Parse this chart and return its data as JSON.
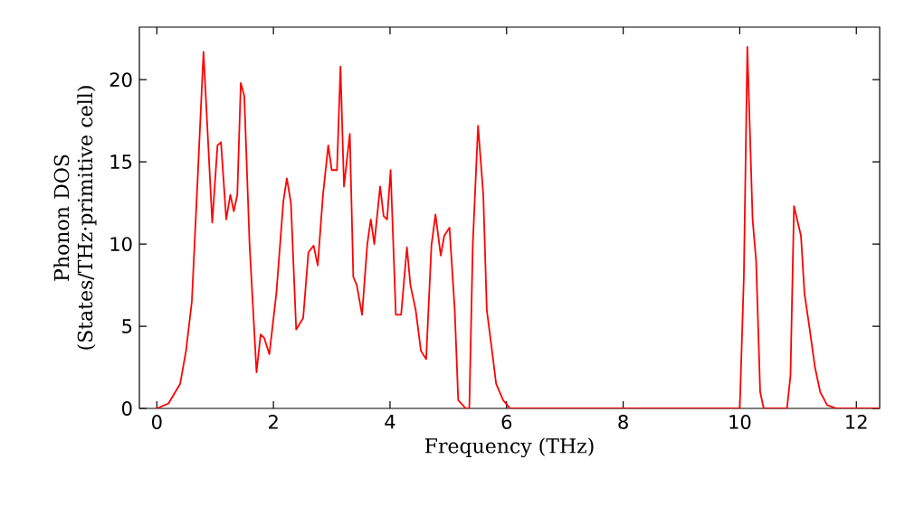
{
  "chart_data": {
    "type": "line",
    "xlabel": "Frequency (THz)",
    "ylabel": "Phonon DOS (States/THz·primitive cell)",
    "xlim": [
      -0.3,
      12.4
    ],
    "ylim": [
      0,
      23.2
    ],
    "xticks": [
      0,
      2,
      4,
      6,
      8,
      10,
      12
    ],
    "yticks": [
      0,
      5,
      10,
      15,
      20
    ],
    "grid": false,
    "series": [
      {
        "color": "#ff0000",
        "x": [
          0,
          0.2,
          0.4,
          0.5,
          0.6,
          0.7,
          0.8,
          0.95,
          1.04,
          1.1,
          1.19,
          1.26,
          1.32,
          1.38,
          1.44,
          1.5,
          1.59,
          1.71,
          1.78,
          1.84,
          1.93,
          2.05,
          2.17,
          2.23,
          2.3,
          2.39,
          2.51,
          2.6,
          2.69,
          2.76,
          2.85,
          2.94,
          3.0,
          3.09,
          3.15,
          3.21,
          3.31,
          3.37,
          3.43,
          3.52,
          3.61,
          3.67,
          3.73,
          3.83,
          3.89,
          3.95,
          4.01,
          4.1,
          4.19,
          4.29,
          4.35,
          4.44,
          4.53,
          4.62,
          4.71,
          4.78,
          4.87,
          4.93,
          5.02,
          5.11,
          5.17,
          5.3,
          5.36,
          5.42,
          5.51,
          5.6,
          5.66,
          5.75,
          5.82,
          5.94,
          6.06,
          8.0,
          10.0,
          10.07,
          10.13,
          10.22,
          10.28,
          10.35,
          10.41,
          10.81,
          10.87,
          10.93,
          11.05,
          11.11,
          11.2,
          11.29,
          11.38,
          11.5,
          11.66,
          12.4
        ],
        "values": [
          0,
          0.3,
          1.5,
          3.5,
          6.5,
          14,
          21.7,
          11.3,
          16,
          16.2,
          11.5,
          13,
          12,
          13,
          19.8,
          19,
          10,
          2.2,
          4.5,
          4.3,
          3.3,
          7,
          12.6,
          14,
          12.5,
          4.8,
          5.5,
          9.5,
          9.9,
          8.7,
          13,
          16,
          14.5,
          14.5,
          20.8,
          13.5,
          16.7,
          8,
          7.5,
          5.7,
          10,
          11.5,
          10,
          13.5,
          11.7,
          11.5,
          14.5,
          5.7,
          5.7,
          9.8,
          7.5,
          6,
          3.5,
          3,
          9.9,
          11.8,
          9.3,
          10.5,
          11,
          6,
          0.5,
          0,
          0,
          10,
          17.2,
          13,
          6,
          3.5,
          1.5,
          0.5,
          0,
          0,
          0,
          8,
          22,
          11.5,
          9,
          1,
          0,
          0,
          2,
          12.3,
          10.5,
          7,
          4.8,
          2.5,
          1,
          0.2,
          0,
          0
        ]
      }
    ]
  }
}
